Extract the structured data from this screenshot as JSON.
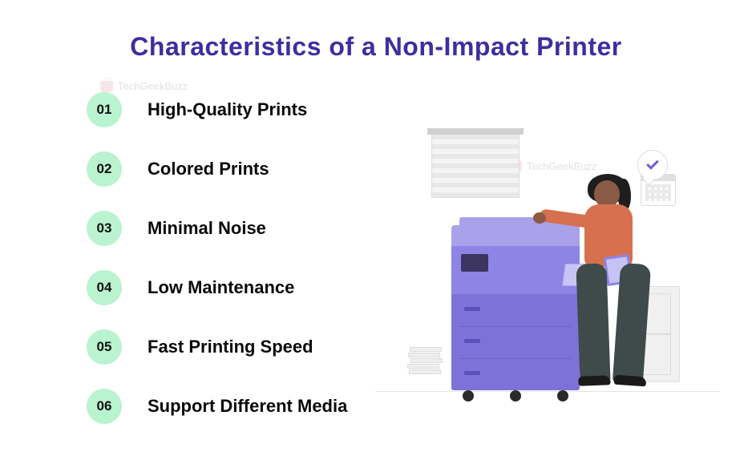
{
  "title": "Characteristics of a Non-Impact Printer",
  "title_color": "#3d2f9e",
  "watermark_text": "TechGeekBuzz",
  "badge_bg": "#b9f3cf",
  "badge_text_color": "#111111",
  "item_text_color": "#0a0a0a",
  "items": [
    {
      "num": "01",
      "label": "High-Quality Prints"
    },
    {
      "num": "02",
      "label": "Colored Prints"
    },
    {
      "num": "03",
      "label": "Minimal Noise"
    },
    {
      "num": "04",
      "label": "Low Maintenance"
    },
    {
      "num": "05",
      "label": "Fast Printing Speed"
    },
    {
      "num": "06",
      "label": "Support Different Media"
    }
  ],
  "illustration": {
    "printer_main": "#8d84e6",
    "printer_light": "#a9a2ea",
    "printer_drawers": "#7d72d8",
    "person_shirt": "#d6704f",
    "person_pants": "#3f4a4a",
    "person_skin": "#8a5a44",
    "person_hair": "#1e1e1e",
    "check_color": "#6a5fd0"
  }
}
